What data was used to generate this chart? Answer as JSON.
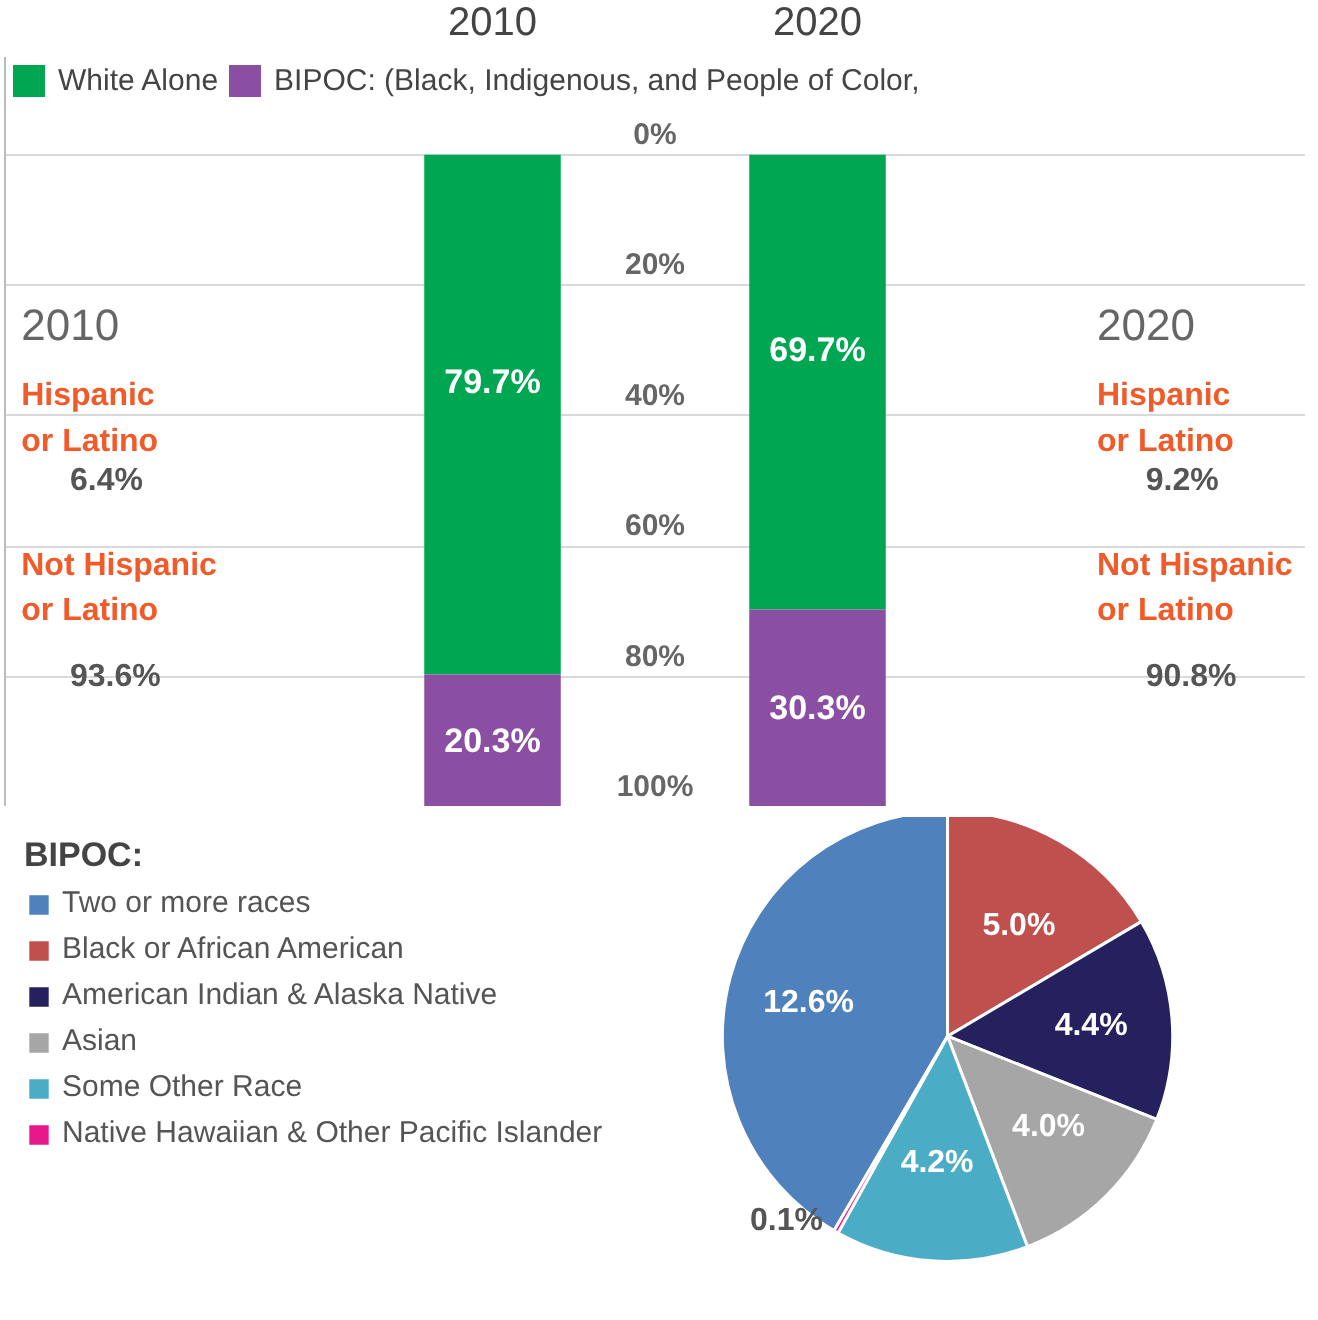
{
  "chart_data": [
    {
      "type": "bar",
      "stacked": true,
      "categories": [
        "2010",
        "2020"
      ],
      "series": [
        {
          "name": "White Alone",
          "color": "#00a651",
          "values": [
            79.7,
            69.7
          ],
          "value_labels": [
            "79.7%",
            "69.7%"
          ]
        },
        {
          "name": "BIPOC: (Black, Indigenous, and People of Color,",
          "color": "#8a4fa3",
          "values": [
            20.3,
            30.3
          ],
          "value_labels": [
            "20.3%",
            "30.3%"
          ]
        }
      ],
      "ylim": [
        100,
        -15
      ],
      "yticks": [
        {
          "value": 0,
          "label": "0%"
        },
        {
          "value": 20,
          "label": "20%"
        },
        {
          "value": 40,
          "label": "40%"
        },
        {
          "value": 60,
          "label": "60%"
        },
        {
          "value": 80,
          "label": "80%"
        },
        {
          "value": 100,
          "label": "100%"
        }
      ],
      "grid": "y",
      "legend": "top",
      "annotations": [
        {
          "text": "2010"
        },
        {
          "text": "Hispanic or Latino"
        },
        {
          "text": "6.4%"
        },
        {
          "text": "Not Hispanic or Latino"
        },
        {
          "text": "93.6%"
        },
        {
          "text": "2020"
        },
        {
          "text": "Hispanic or Latino"
        },
        {
          "text": "9.2%"
        },
        {
          "text": "Not Hispanic or Latino"
        },
        {
          "text": "90.8%"
        }
      ]
    },
    {
      "type": "pie",
      "legend_title": "BIPOC:",
      "legend": "left",
      "categories": [
        "Two or more races",
        "Black or African American",
        "American Indian & Alaska Native",
        "Asian",
        "Some Other Race",
        "Native Hawaiian & Other Pacific Islander"
      ],
      "values": [
        12.6,
        5.0,
        4.4,
        4.0,
        4.2,
        0.1
      ],
      "colors": [
        "#4f81bd",
        "#c0504d",
        "#25215e",
        "#a6a6a6",
        "#4bacc6",
        "#e8178b"
      ],
      "value_labels": [
        "12.6%",
        "5.0%",
        "4.4%",
        "4.0%",
        "4.2%",
        "0.1%"
      ]
    }
  ]
}
